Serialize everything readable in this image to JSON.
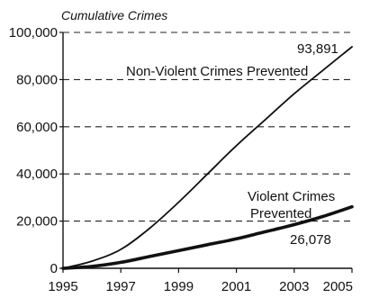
{
  "chart_data": {
    "type": "line",
    "ylabel": "Cumulative Crimes",
    "xlabel": "",
    "x_ticks": [
      "1995",
      "1997",
      "1999",
      "2001",
      "2003",
      "2005"
    ],
    "y_ticks": [
      "0",
      "20,000",
      "40,000",
      "60,000",
      "80,000",
      "100,000"
    ],
    "xlim": [
      1995,
      2005
    ],
    "ylim": [
      0,
      100000
    ],
    "grid": true,
    "series": [
      {
        "name": "Non-Violent Crimes Prevented",
        "color": "#111111",
        "x": [
          1995,
          1996,
          1997,
          1998,
          1999,
          2000,
          2001,
          2002,
          2003,
          2004,
          2005
        ],
        "y": [
          0,
          3000,
          8000,
          17000,
          28000,
          40000,
          52000,
          63000,
          74000,
          84000,
          93891
        ]
      },
      {
        "name": "Violent Crimes Prevented",
        "color": "#111111",
        "x": [
          1995,
          1996,
          1997,
          1998,
          1999,
          2000,
          2001,
          2002,
          2003,
          2004,
          2005
        ],
        "y": [
          0,
          800,
          2500,
          5000,
          7500,
          10000,
          12500,
          15500,
          18500,
          22000,
          26078
        ]
      }
    ],
    "annotations": {
      "nonviolent_end": "93,891",
      "violent_end": "26,078",
      "violent_label_line1": "Violent Crimes",
      "violent_label_line2": "Prevented"
    }
  }
}
